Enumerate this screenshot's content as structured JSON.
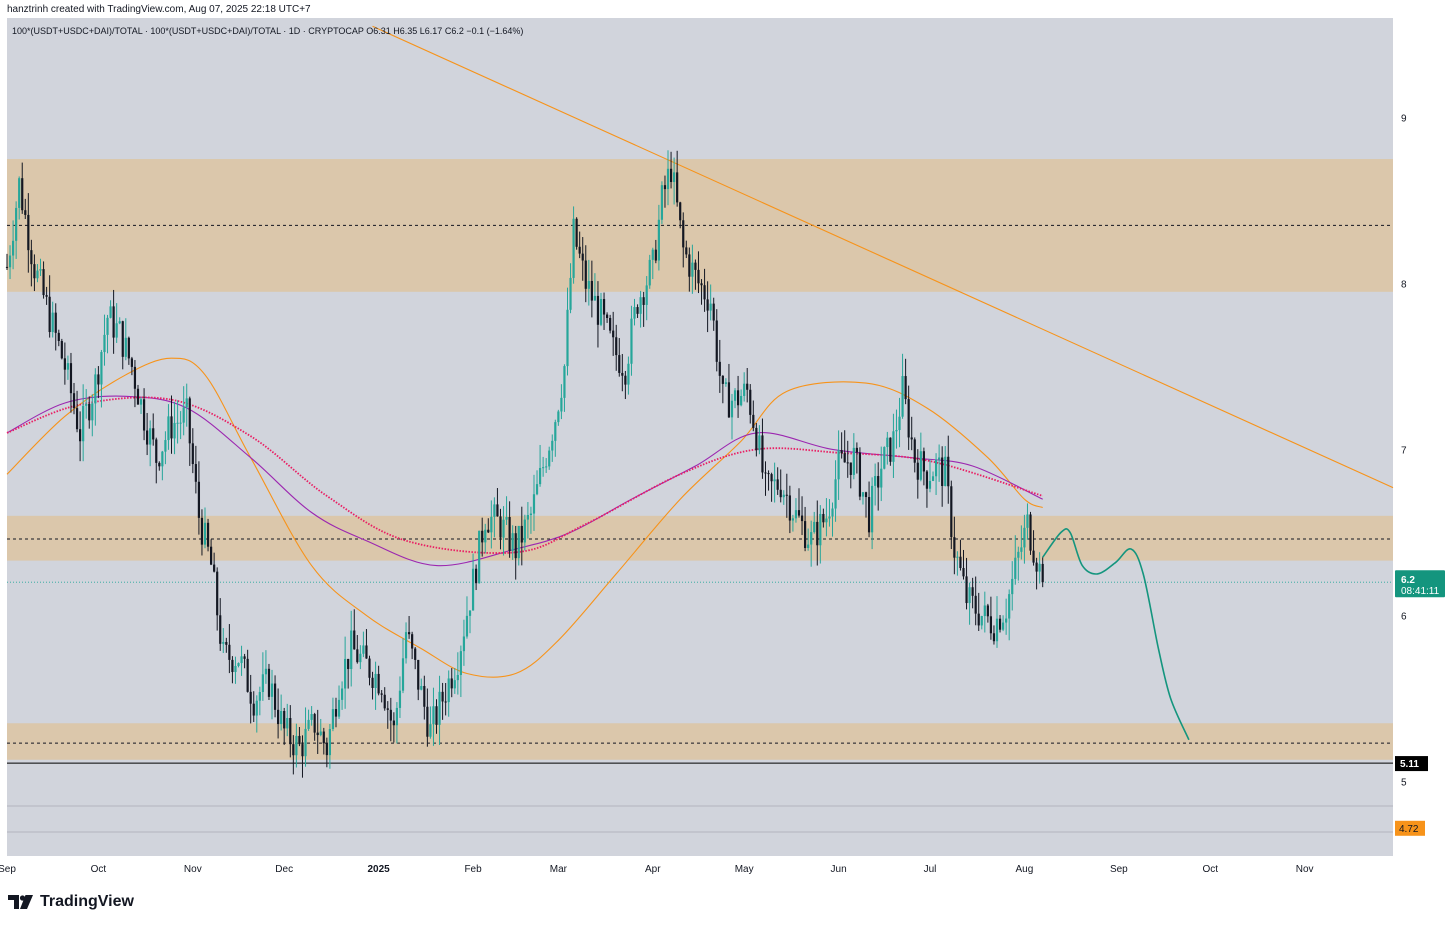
{
  "header": {
    "attribution": "hanztrinh created with TradingView.com, Aug 07, 2025 22:18 UTC+7",
    "symbol_line": "100*(USDT+USDC+DAI)/TOTAL · 100*(USDT+USDC+DAI)/TOTAL · 1D · CRYPTOCAP  O6.31  H6.35  L6.17  C6.2  −0.1 (−1.64%)"
  },
  "footer": {
    "brand": "TradingView",
    "logo_icon": "tradingview-logo-icon"
  },
  "colors": {
    "background": "#d1d4dc",
    "zone": "#dbc7ab",
    "candle_up": "#26a69a",
    "candle_down": "#131722",
    "ma_orange": "#f7931a",
    "ma_purple": "#9c27b0",
    "ma_red_dotted": "#e91e63",
    "trendline": "#f7931a",
    "projection": "#14957e",
    "last_price_badge": "#14957e",
    "level_badge": "#000000",
    "orange_badge": "#f7931a"
  },
  "chart_data": {
    "type": "candlestick",
    "title": "",
    "interval": "1D",
    "exchange": "CRYPTOCAP",
    "ohlc_last": {
      "open": 6.31,
      "high": 6.35,
      "low": 6.17,
      "close": 6.2,
      "change": -0.1,
      "change_pct": -1.64
    },
    "x_axis": {
      "type": "date",
      "range": [
        "2024-09-01",
        "2025-11-30"
      ],
      "tick_labels": [
        {
          "date": "2024-09-01",
          "label": "Sep"
        },
        {
          "date": "2024-10-01",
          "label": "Oct"
        },
        {
          "date": "2024-11-01",
          "label": "Nov"
        },
        {
          "date": "2024-12-01",
          "label": "Dec"
        },
        {
          "date": "2025-01-01",
          "label": "2025"
        },
        {
          "date": "2025-02-01",
          "label": "Feb"
        },
        {
          "date": "2025-03-01",
          "label": "Mar"
        },
        {
          "date": "2025-04-01",
          "label": "Apr"
        },
        {
          "date": "2025-05-01",
          "label": "May"
        },
        {
          "date": "2025-06-01",
          "label": "Jun"
        },
        {
          "date": "2025-07-01",
          "label": "Jul"
        },
        {
          "date": "2025-08-01",
          "label": "Aug"
        },
        {
          "date": "2025-09-01",
          "label": "Sep"
        },
        {
          "date": "2025-10-01",
          "label": "Oct"
        },
        {
          "date": "2025-11-01",
          "label": "Nov"
        }
      ]
    },
    "y_axis": {
      "position": "right",
      "range": [
        4.55,
        9.6
      ],
      "ticks": [
        "9",
        "8",
        "7",
        "6",
        "5"
      ]
    },
    "zones": [
      {
        "low": 7.95,
        "high": 8.75,
        "mid": 8.35
      },
      {
        "low": 6.33,
        "high": 6.6,
        "mid": 6.46
      },
      {
        "low": 5.13,
        "high": 5.35,
        "mid": 5.23
      }
    ],
    "horizontal_lines": [
      {
        "value": 5.11,
        "style": "solid"
      },
      {
        "value": 6.2,
        "style": "dotted-last-price"
      }
    ],
    "price_badges": [
      {
        "value": 6.2,
        "label": "6.2",
        "sublabel": "08:41:11",
        "kind": "last_price"
      },
      {
        "value": 5.11,
        "label": "5.11",
        "kind": "level"
      },
      {
        "value": 4.72,
        "label": "4.72",
        "kind": "orange"
      }
    ],
    "trendline": {
      "from": [
        "2024-12-30",
        9.55
      ],
      "to": [
        "2025-11-30",
        6.77
      ]
    },
    "price_path": [
      [
        "2024-09-01",
        8.1
      ],
      [
        "2024-09-05",
        8.6
      ],
      [
        "2024-09-10",
        8.1
      ],
      [
        "2024-09-15",
        7.8
      ],
      [
        "2024-09-20",
        7.5
      ],
      [
        "2024-09-25",
        7.1
      ],
      [
        "2024-09-30",
        7.4
      ],
      [
        "2024-10-04",
        7.8
      ],
      [
        "2024-10-08",
        7.7
      ],
      [
        "2024-10-12",
        7.5
      ],
      [
        "2024-10-16",
        7.2
      ],
      [
        "2024-10-20",
        6.95
      ],
      [
        "2024-10-25",
        7.15
      ],
      [
        "2024-10-30",
        7.2
      ],
      [
        "2024-11-03",
        6.6
      ],
      [
        "2024-11-07",
        6.3
      ],
      [
        "2024-11-11",
        5.75
      ],
      [
        "2024-11-16",
        5.75
      ],
      [
        "2024-11-21",
        5.5
      ],
      [
        "2024-11-26",
        5.6
      ],
      [
        "2024-12-01",
        5.3
      ],
      [
        "2024-12-06",
        5.2
      ],
      [
        "2024-12-11",
        5.35
      ],
      [
        "2024-12-15",
        5.2
      ],
      [
        "2024-12-19",
        5.6
      ],
      [
        "2024-12-23",
        5.8
      ],
      [
        "2024-12-28",
        5.7
      ],
      [
        "2025-01-02",
        5.6
      ],
      [
        "2025-01-06",
        5.3
      ],
      [
        "2025-01-10",
        5.9
      ],
      [
        "2025-01-14",
        5.6
      ],
      [
        "2025-01-18",
        5.3
      ],
      [
        "2025-01-22",
        5.5
      ],
      [
        "2025-01-27",
        5.75
      ],
      [
        "2025-02-01",
        6.2
      ],
      [
        "2025-02-05",
        6.6
      ],
      [
        "2025-02-10",
        6.55
      ],
      [
        "2025-02-15",
        6.4
      ],
      [
        "2025-02-20",
        6.6
      ],
      [
        "2025-02-24",
        6.9
      ],
      [
        "2025-02-28",
        7.2
      ],
      [
        "2025-03-03",
        7.5
      ],
      [
        "2025-03-06",
        8.3
      ],
      [
        "2025-03-10",
        8.0
      ],
      [
        "2025-03-15",
        7.8
      ],
      [
        "2025-03-19",
        7.6
      ],
      [
        "2025-03-23",
        7.5
      ],
      [
        "2025-03-27",
        7.9
      ],
      [
        "2025-04-01",
        8.1
      ],
      [
        "2025-04-04",
        8.5
      ],
      [
        "2025-04-07",
        8.7
      ],
      [
        "2025-04-11",
        8.2
      ],
      [
        "2025-04-16",
        8.0
      ],
      [
        "2025-04-20",
        7.9
      ],
      [
        "2025-04-24",
        7.3
      ],
      [
        "2025-04-28",
        7.3
      ],
      [
        "2025-05-02",
        7.35
      ],
      [
        "2025-05-05",
        7.1
      ],
      [
        "2025-05-08",
        6.75
      ],
      [
        "2025-05-13",
        6.8
      ],
      [
        "2025-05-18",
        6.6
      ],
      [
        "2025-05-23",
        6.45
      ],
      [
        "2025-05-28",
        6.6
      ],
      [
        "2025-06-01",
        6.9
      ],
      [
        "2025-06-06",
        6.95
      ],
      [
        "2025-06-11",
        6.6
      ],
      [
        "2025-06-15",
        6.9
      ],
      [
        "2025-06-19",
        7.05
      ],
      [
        "2025-06-22",
        7.35
      ],
      [
        "2025-06-26",
        6.95
      ],
      [
        "2025-06-30",
        6.85
      ],
      [
        "2025-07-03",
        6.9
      ],
      [
        "2025-07-06",
        6.85
      ],
      [
        "2025-07-09",
        6.4
      ],
      [
        "2025-07-13",
        6.1
      ],
      [
        "2025-07-18",
        6.0
      ],
      [
        "2025-07-22",
        5.95
      ],
      [
        "2025-07-26",
        6.05
      ],
      [
        "2025-07-30",
        6.35
      ],
      [
        "2025-08-02",
        6.55
      ],
      [
        "2025-08-05",
        6.35
      ],
      [
        "2025-08-07",
        6.2
      ]
    ],
    "moving_averages": [
      {
        "style": "solid",
        "color": "#f7931a",
        "points": [
          [
            "2024-09-01",
            6.85
          ],
          [
            "2024-09-20",
            7.2
          ],
          [
            "2024-10-10",
            7.45
          ],
          [
            "2024-10-25",
            7.55
          ],
          [
            "2024-11-05",
            7.45
          ],
          [
            "2024-11-20",
            6.95
          ],
          [
            "2024-12-10",
            6.3
          ],
          [
            "2024-12-28",
            6.0
          ],
          [
            "2025-01-15",
            5.8
          ],
          [
            "2025-01-30",
            5.65
          ],
          [
            "2025-02-15",
            5.65
          ],
          [
            "2025-03-01",
            5.85
          ],
          [
            "2025-03-20",
            6.25
          ],
          [
            "2025-04-10",
            6.7
          ],
          [
            "2025-04-30",
            7.05
          ],
          [
            "2025-05-15",
            7.35
          ],
          [
            "2025-06-10",
            7.4
          ],
          [
            "2025-06-30",
            7.25
          ],
          [
            "2025-07-20",
            6.95
          ],
          [
            "2025-08-01",
            6.7
          ],
          [
            "2025-08-07",
            6.65
          ]
        ]
      },
      {
        "style": "solid",
        "color": "#9c27b0",
        "points": [
          [
            "2024-09-01",
            7.1
          ],
          [
            "2024-09-20",
            7.28
          ],
          [
            "2024-10-10",
            7.32
          ],
          [
            "2024-10-30",
            7.25
          ],
          [
            "2024-11-20",
            6.95
          ],
          [
            "2024-12-10",
            6.62
          ],
          [
            "2024-12-28",
            6.45
          ],
          [
            "2025-01-20",
            6.3
          ],
          [
            "2025-02-15",
            6.4
          ],
          [
            "2025-03-05",
            6.5
          ],
          [
            "2025-03-25",
            6.7
          ],
          [
            "2025-04-15",
            6.9
          ],
          [
            "2025-05-05",
            7.1
          ],
          [
            "2025-05-30",
            7.0
          ],
          [
            "2025-06-25",
            6.95
          ],
          [
            "2025-07-15",
            6.9
          ],
          [
            "2025-08-07",
            6.7
          ]
        ]
      },
      {
        "style": "dotted",
        "color": "#e91e63",
        "points": [
          [
            "2024-09-01",
            7.1
          ],
          [
            "2024-09-25",
            7.27
          ],
          [
            "2024-10-25",
            7.3
          ],
          [
            "2024-11-20",
            7.08
          ],
          [
            "2024-12-15",
            6.72
          ],
          [
            "2025-01-10",
            6.45
          ],
          [
            "2025-02-15",
            6.38
          ],
          [
            "2025-03-10",
            6.55
          ],
          [
            "2025-04-10",
            6.85
          ],
          [
            "2025-05-05",
            7.0
          ],
          [
            "2025-06-01",
            6.98
          ],
          [
            "2025-07-01",
            6.93
          ],
          [
            "2025-08-07",
            6.72
          ]
        ]
      }
    ],
    "projection": {
      "points": [
        [
          "2025-08-07",
          6.35
        ],
        [
          "2025-08-13",
          6.5
        ],
        [
          "2025-08-16",
          6.5
        ],
        [
          "2025-08-20",
          6.3
        ],
        [
          "2025-08-25",
          6.25
        ],
        [
          "2025-08-31",
          6.32
        ],
        [
          "2025-09-05",
          6.4
        ],
        [
          "2025-09-09",
          6.25
        ],
        [
          "2025-09-14",
          5.8
        ],
        [
          "2025-09-18",
          5.5
        ],
        [
          "2025-09-24",
          5.25
        ]
      ]
    }
  }
}
